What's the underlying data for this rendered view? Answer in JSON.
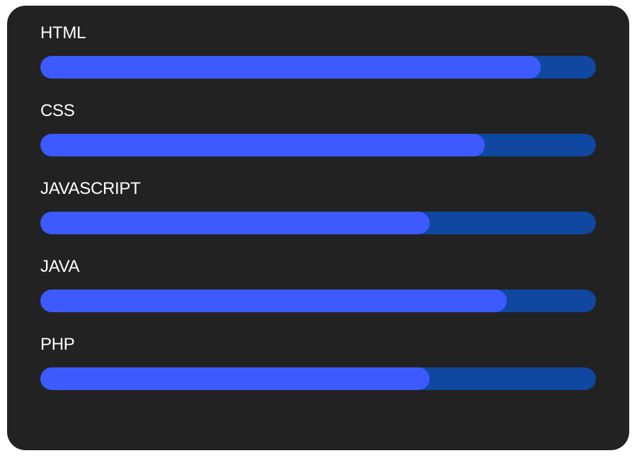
{
  "colors": {
    "card_bg": "#222222",
    "track": "#0f47a1",
    "fill": "#3d5afe",
    "label": "#ffffff"
  },
  "skills": [
    {
      "label": "HTML",
      "level": 0.9
    },
    {
      "label": "CSS",
      "level": 0.8
    },
    {
      "label": "JAVASCRIPT",
      "level": 0.7
    },
    {
      "label": "JAVA",
      "level": 0.84
    },
    {
      "label": "PHP",
      "level": 0.7
    }
  ]
}
